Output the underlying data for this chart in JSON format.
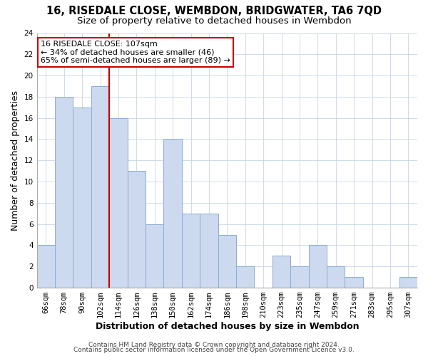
{
  "title": "16, RISEDALE CLOSE, WEMBDON, BRIDGWATER, TA6 7QD",
  "subtitle": "Size of property relative to detached houses in Wembdon",
  "xlabel": "Distribution of detached houses by size in Wembdon",
  "ylabel": "Number of detached properties",
  "bar_labels": [
    "66sqm",
    "78sqm",
    "90sqm",
    "102sqm",
    "114sqm",
    "126sqm",
    "138sqm",
    "150sqm",
    "162sqm",
    "174sqm",
    "186sqm",
    "198sqm",
    "210sqm",
    "223sqm",
    "235sqm",
    "247sqm",
    "259sqm",
    "271sqm",
    "283sqm",
    "295sqm",
    "307sqm"
  ],
  "bar_values": [
    4,
    18,
    17,
    19,
    16,
    11,
    6,
    14,
    7,
    7,
    5,
    2,
    0,
    3,
    2,
    4,
    2,
    1,
    0,
    0,
    1
  ],
  "bar_color": "#ccd9ee",
  "bar_edge_color": "#8aadd4",
  "ref_line_color": "#cc0000",
  "annotation_box_edge": "#cc0000",
  "ref_line_label": "16 RISEDALE CLOSE: 107sqm",
  "annotation_line1": "← 34% of detached houses are smaller (46)",
  "annotation_line2": "65% of semi-detached houses are larger (89) →",
  "ylim": [
    0,
    24
  ],
  "yticks": [
    0,
    2,
    4,
    6,
    8,
    10,
    12,
    14,
    16,
    18,
    20,
    22,
    24
  ],
  "footer1": "Contains HM Land Registry data © Crown copyright and database right 2024.",
  "footer2": "Contains public sector information licensed under the Open Government Licence v3.0.",
  "title_fontsize": 10.5,
  "subtitle_fontsize": 9.5,
  "axis_label_fontsize": 9,
  "tick_fontsize": 7.5,
  "annotation_fontsize": 8,
  "footer_fontsize": 6.5
}
